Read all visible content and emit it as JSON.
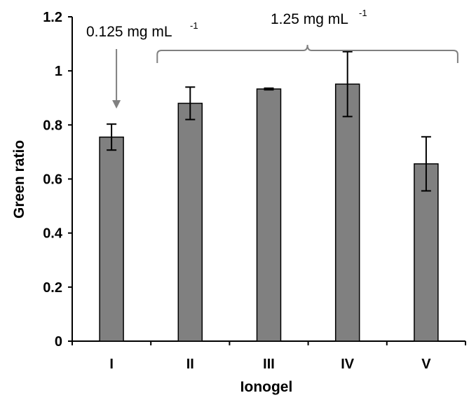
{
  "chart_data": {
    "type": "bar",
    "categories": [
      "I",
      "II",
      "III",
      "IV",
      "V"
    ],
    "values": [
      0.755,
      0.88,
      0.933,
      0.951,
      0.656
    ],
    "error": [
      0.048,
      0.06,
      0.003,
      0.12,
      0.1
    ],
    "xlabel": "Ionogel",
    "ylabel": "Green ratio",
    "ylim": [
      0,
      1.2
    ],
    "yticks": [
      "0",
      "0.2",
      "0.4",
      "0.6",
      "0.8",
      "1",
      "1.2"
    ],
    "grid": false,
    "bar_color": "#808080",
    "annotations": [
      {
        "text": "0.125 mg mL",
        "sup": "-1",
        "targets": [
          "I"
        ],
        "marker": "arrow"
      },
      {
        "text": "1.25 mg mL",
        "sup": "-1",
        "targets": [
          "II",
          "III",
          "IV",
          "V"
        ],
        "marker": "brace"
      }
    ]
  }
}
